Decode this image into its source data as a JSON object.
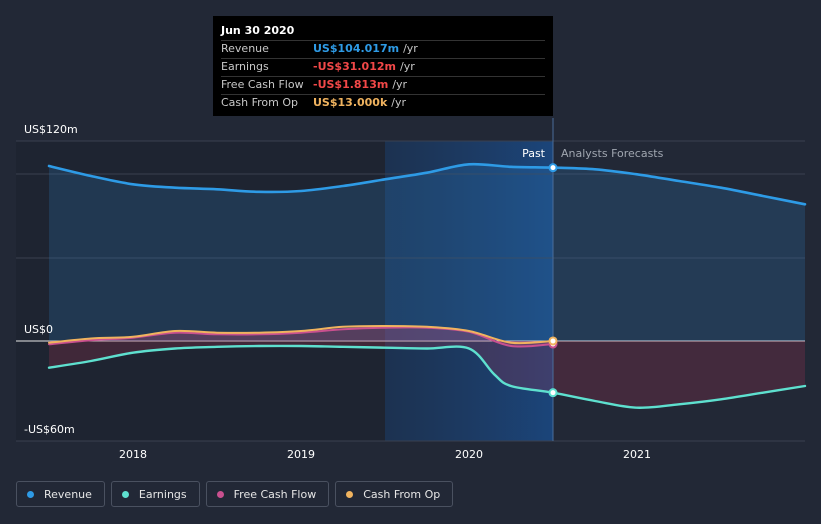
{
  "tooltip": {
    "date": "Jun 30 2020",
    "rows": [
      {
        "label": "Revenue",
        "value": "US$104.017m",
        "unit": "/yr",
        "color": "#2e9be6"
      },
      {
        "label": "Earnings",
        "value": "-US$31.012m",
        "unit": "/yr",
        "color": "#f24848"
      },
      {
        "label": "Free Cash Flow",
        "value": "-US$1.813m",
        "unit": "/yr",
        "color": "#f24848"
      },
      {
        "label": "Cash From Op",
        "value": "US$13.000k",
        "unit": "/yr",
        "color": "#f0b35f"
      }
    ]
  },
  "region_labels": {
    "past": "Past",
    "forecast": "Analysts Forecasts"
  },
  "legend": [
    {
      "label": "Revenue",
      "color": "#2e9be6"
    },
    {
      "label": "Earnings",
      "color": "#5ee0cf"
    },
    {
      "label": "Free Cash Flow",
      "color": "#c9508f"
    },
    {
      "label": "Cash From Op",
      "color": "#f0b35f"
    }
  ],
  "chart_data": {
    "type": "line",
    "ylim": [
      -60,
      120
    ],
    "y_ticks": [
      {
        "value": 120,
        "label": "US$120m"
      },
      {
        "value": 0,
        "label": "US$0"
      },
      {
        "value": -60,
        "label": "-US$60m"
      }
    ],
    "x_ticks": [
      {
        "value": 2018,
        "label": "2018"
      },
      {
        "value": 2019,
        "label": "2019"
      },
      {
        "value": 2020,
        "label": "2020"
      },
      {
        "value": 2021,
        "label": "2021"
      }
    ],
    "xlim": [
      2017.0,
      2022.0
    ],
    "highlight_start": 2019.5,
    "past_end": 2020.5,
    "series": [
      {
        "name": "Revenue",
        "color": "#2e9be6",
        "fill": true,
        "points": [
          [
            2017.5,
            105
          ],
          [
            2017.75,
            99
          ],
          [
            2018,
            94
          ],
          [
            2018.25,
            92
          ],
          [
            2018.5,
            91
          ],
          [
            2018.75,
            89.5
          ],
          [
            2019,
            90
          ],
          [
            2019.25,
            93
          ],
          [
            2019.5,
            97
          ],
          [
            2019.75,
            101
          ],
          [
            2020,
            106
          ],
          [
            2020.25,
            104.5
          ],
          [
            2020.5,
            104.017
          ],
          [
            2020.75,
            103
          ],
          [
            2021,
            100
          ],
          [
            2021.25,
            96
          ],
          [
            2021.5,
            92
          ],
          [
            2021.75,
            87
          ],
          [
            2022,
            82
          ]
        ]
      },
      {
        "name": "Earnings",
        "color": "#5ee0cf",
        "fill": true,
        "points": [
          [
            2017.5,
            -16
          ],
          [
            2017.75,
            -12
          ],
          [
            2018,
            -7
          ],
          [
            2018.25,
            -4.5
          ],
          [
            2018.5,
            -3.5
          ],
          [
            2018.75,
            -3
          ],
          [
            2019,
            -3
          ],
          [
            2019.25,
            -3.5
          ],
          [
            2019.5,
            -4
          ],
          [
            2019.75,
            -4.5
          ],
          [
            2020,
            -4.5
          ],
          [
            2020.15,
            -20
          ],
          [
            2020.25,
            -27
          ],
          [
            2020.5,
            -31.012
          ],
          [
            2020.75,
            -36
          ],
          [
            2021,
            -40
          ],
          [
            2021.25,
            -38
          ],
          [
            2021.5,
            -35
          ],
          [
            2021.75,
            -31
          ],
          [
            2022,
            -27
          ]
        ]
      },
      {
        "name": "Free Cash Flow",
        "color": "#c9508f",
        "fill": true,
        "points": [
          [
            2017.5,
            -2
          ],
          [
            2017.75,
            0.5
          ],
          [
            2018,
            2
          ],
          [
            2018.25,
            5
          ],
          [
            2018.5,
            4
          ],
          [
            2018.75,
            4
          ],
          [
            2019,
            5
          ],
          [
            2019.25,
            7
          ],
          [
            2019.5,
            8
          ],
          [
            2019.75,
            8
          ],
          [
            2020,
            5.5
          ],
          [
            2020.25,
            -3
          ],
          [
            2020.5,
            -1.813
          ]
        ]
      },
      {
        "name": "Cash From Op",
        "color": "#f0b35f",
        "fill": false,
        "points": [
          [
            2017.5,
            -1
          ],
          [
            2017.75,
            1.5
          ],
          [
            2018,
            2.5
          ],
          [
            2018.25,
            6
          ],
          [
            2018.5,
            5
          ],
          [
            2018.75,
            5
          ],
          [
            2019,
            6
          ],
          [
            2019.25,
            8.5
          ],
          [
            2019.5,
            9
          ],
          [
            2019.75,
            8.5
          ],
          [
            2020,
            6
          ],
          [
            2020.25,
            -1
          ],
          [
            2020.5,
            0.013
          ]
        ]
      }
    ]
  }
}
